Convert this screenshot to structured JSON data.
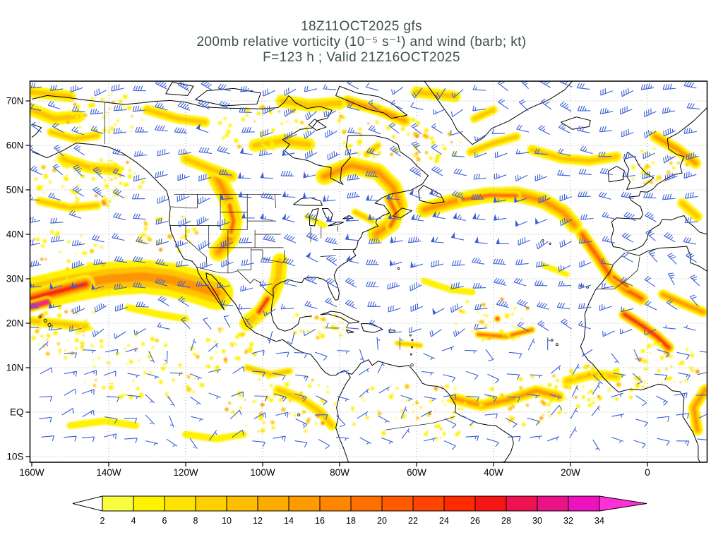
{
  "title": {
    "line1": "18Z11OCT2025 gfs",
    "line2": "200mb relative vorticity (10⁻⁵ s⁻¹) and wind (barb; kt)",
    "line3": "F=123 h ; Valid 21Z16OCT2025"
  },
  "axes": {
    "lat_ticks": [
      {
        "label": "70N",
        "deg": 70
      },
      {
        "label": "60N",
        "deg": 60
      },
      {
        "label": "50N",
        "deg": 50
      },
      {
        "label": "40N",
        "deg": 40
      },
      {
        "label": "30N",
        "deg": 30
      },
      {
        "label": "20N",
        "deg": 20
      },
      {
        "label": "10N",
        "deg": 10
      },
      {
        "label": "EQ",
        "deg": 0
      },
      {
        "label": "10S",
        "deg": -10
      }
    ],
    "lon_ticks": [
      {
        "label": "160W",
        "deg": -160
      },
      {
        "label": "140W",
        "deg": -140
      },
      {
        "label": "120W",
        "deg": -120
      },
      {
        "label": "100W",
        "deg": -100
      },
      {
        "label": "80W",
        "deg": -80
      },
      {
        "label": "60W",
        "deg": -60
      },
      {
        "label": "40W",
        "deg": -40
      },
      {
        "label": "20W",
        "deg": -20
      },
      {
        "label": "0",
        "deg": 0
      }
    ]
  },
  "colorbar": {
    "tick_labels": [
      "2",
      "4",
      "6",
      "8",
      "10",
      "12",
      "14",
      "16",
      "18",
      "20",
      "22",
      "24",
      "26",
      "28",
      "30",
      "32",
      "34"
    ],
    "cell_colors": [
      "#f8fd40",
      "#fff200",
      "#ffe200",
      "#ffd000",
      "#ffbe00",
      "#ffac00",
      "#ff9a00",
      "#ff8600",
      "#ff7000",
      "#ff5a00",
      "#ff4300",
      "#ff2b00",
      "#f71616",
      "#f01150",
      "#e91387",
      "#ed12bd"
    ],
    "arrow_left_color": "#ffffff",
    "arrow_right_color": "#ff30d8"
  },
  "colors": {
    "barb": "#3a5fd9",
    "coast": "#000000",
    "grid": "#aaaaaa",
    "frame": "#000000",
    "title_text": "#3e4f4f"
  },
  "chart_data": {
    "type": "heatmap",
    "title": "18Z11OCT2025 gfs",
    "subtitle": "200mb relative vorticity (10⁻⁵ s⁻¹) and wind (barb; kt)",
    "model": "gfs",
    "init_time": "18Z11OCT2025",
    "forecast_hour": 123,
    "valid_time": "21Z16OCT2025",
    "level": "200mb",
    "field": "relative vorticity",
    "field_units": "10⁻⁵ s⁻¹",
    "wind_display": "barb",
    "wind_units": "kt",
    "x_axis": {
      "ticks": [
        "160W",
        "140W",
        "120W",
        "100W",
        "80W",
        "60W",
        "40W",
        "20W",
        "0"
      ],
      "range_deg": [
        -160,
        15.6
      ]
    },
    "y_axis": {
      "ticks": [
        "70N",
        "60N",
        "50N",
        "40N",
        "30N",
        "20N",
        "10N",
        "EQ",
        "10S"
      ],
      "range_deg": [
        -11.3,
        74.4
      ]
    },
    "grid": "dotted",
    "legend_position": "bottom",
    "shading_levels": [
      2,
      4,
      6,
      8,
      10,
      12,
      14,
      16,
      18,
      20,
      22,
      24,
      26,
      28,
      30,
      32,
      34
    ],
    "band_palette": [
      "#fff200",
      "#ffc400",
      "#ff9400",
      "#ff5200",
      "#f21212",
      "#e8128f",
      "#ff30d8"
    ],
    "vorticity_bands": [
      {
        "pts": [
          [
            -160,
            26.5
          ],
          [
            -150,
            28.5
          ],
          [
            -140,
            30
          ],
          [
            -131,
            30.5
          ],
          [
            -124,
            29.8
          ],
          [
            -117,
            28.2
          ],
          [
            -112,
            26.8
          ]
        ],
        "w": 24,
        "max": 3
      },
      {
        "pts": [
          [
            -160,
            25.5
          ],
          [
            -153,
            27.2
          ],
          [
            -146,
            28.8
          ]
        ],
        "w": 13,
        "max": 5
      },
      {
        "pts": [
          [
            -160,
            23.8
          ],
          [
            -156,
            24.8
          ]
        ],
        "w": 8,
        "max": 7
      },
      {
        "pts": [
          [
            -160,
            20.5
          ],
          [
            -152,
            19.8
          ],
          [
            -146,
            19.2
          ]
        ],
        "w": 7,
        "max": 2
      },
      {
        "pts": [
          [
            -135,
            23.5
          ],
          [
            -127,
            22
          ],
          [
            -120,
            21
          ]
        ],
        "w": 5,
        "max": 1
      },
      {
        "pts": [
          [
            -104,
            20
          ],
          [
            -100,
            23
          ],
          [
            -97.5,
            26.5
          ],
          [
            -96,
            30
          ],
          [
            -95.5,
            34
          ]
        ],
        "w": 11,
        "max": 2
      },
      {
        "pts": [
          [
            -101,
            22.5
          ],
          [
            -98.7,
            25.5
          ]
        ],
        "w": 7,
        "max": 5
      },
      {
        "pts": [
          [
            -112,
            53
          ],
          [
            -109,
            48
          ],
          [
            -107.5,
            43.5
          ],
          [
            -108.5,
            39
          ],
          [
            -111.5,
            36
          ]
        ],
        "w": 13,
        "max": 3
      },
      {
        "pts": [
          [
            -108.6,
            46.5
          ],
          [
            -107.6,
            43
          ],
          [
            -108.2,
            40.5
          ]
        ],
        "w": 7,
        "max": 4
      },
      {
        "pts": [
          [
            -120,
            57
          ],
          [
            -113,
            54.5
          ],
          [
            -108,
            53
          ]
        ],
        "w": 8,
        "max": 2
      },
      {
        "pts": [
          [
            -102,
            60
          ],
          [
            -95,
            61
          ],
          [
            -88,
            60.2
          ]
        ],
        "w": 9,
        "max": 2
      },
      {
        "pts": [
          [
            -84,
            53
          ],
          [
            -77,
            55.5
          ],
          [
            -70,
            54
          ],
          [
            -66,
            50.5
          ],
          [
            -64.5,
            46.5
          ],
          [
            -66.5,
            42.5
          ],
          [
            -70.5,
            40
          ]
        ],
        "w": 12,
        "max": 3
      },
      {
        "pts": [
          [
            -67.2,
            48
          ],
          [
            -65.2,
            44.5
          ],
          [
            -66.8,
            41.8
          ]
        ],
        "w": 7,
        "max": 4
      },
      {
        "pts": [
          [
            -76,
            45
          ],
          [
            -71.5,
            43
          ]
        ],
        "w": 5,
        "max": 2
      },
      {
        "pts": [
          [
            -58,
            45.5
          ],
          [
            -50,
            47.5
          ],
          [
            -42,
            48.8
          ],
          [
            -34,
            49
          ],
          [
            -27,
            47.5
          ],
          [
            -22,
            45
          ],
          [
            -19,
            42
          ]
        ],
        "w": 11,
        "max": 3
      },
      {
        "pts": [
          [
            -48,
            47.8
          ],
          [
            -41,
            48.8
          ],
          [
            -34,
            48.7
          ]
        ],
        "w": 6.5,
        "max": 4
      },
      {
        "pts": [
          [
            -17,
            40
          ],
          [
            -13,
            35
          ],
          [
            -9.5,
            30.5
          ],
          [
            -5.5,
            27.5
          ],
          [
            -1.5,
            25.5
          ]
        ],
        "w": 9,
        "max": 4
      },
      {
        "pts": [
          [
            -8.8,
            30.5
          ],
          [
            -5.2,
            28.2
          ]
        ],
        "w": 4.5,
        "max": 5
      },
      {
        "pts": [
          [
            -6,
            22
          ],
          [
            -1.5,
            19.5
          ],
          [
            2.5,
            17
          ],
          [
            5.5,
            14.5
          ]
        ],
        "w": 8,
        "max": 5
      },
      {
        "pts": [
          [
            4,
            26.5
          ],
          [
            9,
            24.5
          ],
          [
            14.5,
            22.5
          ]
        ],
        "w": 7,
        "max": 3
      },
      {
        "pts": [
          [
            -44,
            17.5
          ],
          [
            -37,
            17
          ],
          [
            -30,
            18.5
          ]
        ],
        "w": 5,
        "max": 4
      },
      {
        "pts": [
          [
            -39,
            21
          ]
        ],
        "w": 5,
        "max": 6
      },
      {
        "pts": [
          [
            -50,
            3
          ],
          [
            -43,
            1.5
          ],
          [
            -36,
            2.8
          ],
          [
            -29,
            4.8
          ],
          [
            -23,
            3.5
          ]
        ],
        "w": 8,
        "max": 3
      },
      {
        "pts": [
          [
            -21,
            7
          ],
          [
            -14,
            8.5
          ],
          [
            -8,
            8
          ]
        ],
        "w": 7,
        "max": 2
      },
      {
        "pts": [
          [
            -96,
            5
          ],
          [
            -90,
            3
          ],
          [
            -85,
            0
          ],
          [
            -82,
            -3
          ]
        ],
        "w": 7,
        "max": 2
      },
      {
        "pts": [
          [
            -78,
            70
          ],
          [
            -70,
            68
          ],
          [
            -63,
            65.5
          ]
        ],
        "w": 8,
        "max": 3
      },
      {
        "pts": [
          [
            -95,
            70
          ],
          [
            -88,
            69
          ],
          [
            -80,
            69.5
          ]
        ],
        "w": 9,
        "max": 2
      },
      {
        "pts": [
          [
            -60,
            72
          ],
          [
            -50,
            71
          ]
        ],
        "w": 8,
        "max": 2
      },
      {
        "pts": [
          [
            -45,
            66
          ],
          [
            -40,
            68
          ]
        ],
        "w": 6,
        "max": 2
      },
      {
        "pts": [
          [
            -30,
            59
          ],
          [
            -22,
            57
          ],
          [
            -15,
            56.5
          ],
          [
            -8,
            57.5
          ]
        ],
        "w": 7,
        "max": 2
      },
      {
        "pts": [
          [
            2,
            62
          ],
          [
            8,
            59
          ],
          [
            12.5,
            56
          ]
        ],
        "w": 8,
        "max": 3
      },
      {
        "pts": [
          [
            -152,
            57
          ],
          [
            -145,
            55
          ],
          [
            -138,
            54.5
          ]
        ],
        "w": 8,
        "max": 2
      },
      {
        "pts": [
          [
            -158,
            47.5
          ],
          [
            -150,
            46
          ],
          [
            -143,
            46.5
          ]
        ],
        "w": 6,
        "max": 2
      },
      {
        "pts": [
          [
            -160,
            68
          ],
          [
            -154,
            66
          ],
          [
            -148,
            66.5
          ]
        ],
        "w": 9,
        "max": 2
      },
      {
        "pts": [
          [
            -160,
            72
          ],
          [
            -150,
            71
          ]
        ],
        "w": 8,
        "max": 2
      },
      {
        "pts": [
          [
            -58,
            29.5
          ],
          [
            -51,
            27.5
          ],
          [
            -45.5,
            27
          ]
        ],
        "w": 4.5,
        "max": 1
      },
      {
        "pts": [
          [
            -104,
            10
          ],
          [
            -98,
            8.5
          ],
          [
            -93,
            9.2
          ]
        ],
        "w": 5,
        "max": 2
      },
      {
        "pts": [
          [
            -46,
            58.5
          ],
          [
            -40,
            60.5
          ],
          [
            -34,
            62
          ]
        ],
        "w": 6,
        "max": 2
      },
      {
        "pts": [
          [
            -130,
            68
          ],
          [
            -122,
            66
          ],
          [
            -115,
            65.2
          ]
        ],
        "w": 7,
        "max": 2
      },
      {
        "pts": [
          [
            -155,
            63
          ],
          [
            -149,
            61.5
          ],
          [
            -143,
            62.2
          ]
        ],
        "w": 6,
        "max": 2
      },
      {
        "pts": [
          [
            9,
            47
          ],
          [
            13,
            44
          ]
        ],
        "w": 7,
        "max": 2
      },
      {
        "pts": [
          [
            -88.5,
            44
          ],
          [
            -84,
            42
          ]
        ],
        "w": 4,
        "max": 1
      },
      {
        "pts": [
          [
            -27,
            33
          ],
          [
            -21,
            31
          ]
        ],
        "w": 4,
        "max": 1
      },
      {
        "pts": [
          [
            -65,
            15.5
          ],
          [
            -59,
            15
          ]
        ],
        "w": 4,
        "max": 2
      },
      {
        "pts": [
          [
            -120,
            -5
          ],
          [
            -112,
            -6
          ],
          [
            -105,
            -5
          ]
        ],
        "w": 5,
        "max": 1
      },
      {
        "pts": [
          [
            -150,
            -3
          ],
          [
            -141,
            -2
          ],
          [
            -133,
            -3
          ]
        ],
        "w": 5,
        "max": 1
      },
      {
        "pts": [
          [
            15,
            5
          ],
          [
            12,
            1
          ],
          [
            13,
            -4
          ]
        ],
        "w": 8,
        "max": 3
      },
      {
        "pts": [
          [
            -73,
            58
          ],
          [
            -70,
            60
          ]
        ],
        "w": 5,
        "max": 2
      }
    ],
    "speckle_regions": [
      [
        -145,
        52,
        14,
        6,
        80
      ],
      [
        -150,
        18,
        10,
        6,
        50
      ],
      [
        -130,
        10,
        18,
        8,
        60
      ],
      [
        -95,
        2,
        15,
        7,
        55
      ],
      [
        -60,
        0,
        18,
        7,
        60
      ],
      [
        -30,
        3,
        14,
        6,
        50
      ],
      [
        -12,
        6,
        10,
        5,
        40
      ],
      [
        -70,
        63,
        12,
        6,
        40
      ],
      [
        -100,
        64,
        12,
        5,
        35
      ],
      [
        -140,
        67,
        12,
        5,
        35
      ],
      [
        -40,
        21,
        12,
        5,
        30
      ],
      [
        -110,
        14,
        10,
        5,
        35
      ],
      [
        3,
        55,
        8,
        5,
        30
      ],
      [
        -55,
        60,
        8,
        4,
        25
      ],
      [
        -152,
        35,
        12,
        6,
        30
      ],
      [
        -125,
        40,
        8,
        5,
        25
      ],
      [
        5,
        10,
        9,
        6,
        40
      ],
      [
        -85,
        20,
        8,
        4,
        25
      ]
    ],
    "wind_barbs": {
      "spacing_px": 30,
      "color": "#3a5fd9",
      "pattern": "westerlies with synoptic waves in midlatitudes, weak easterlies in tropics, jet maxima over central Pacific near 30N and North Atlantic near 47N"
    }
  }
}
